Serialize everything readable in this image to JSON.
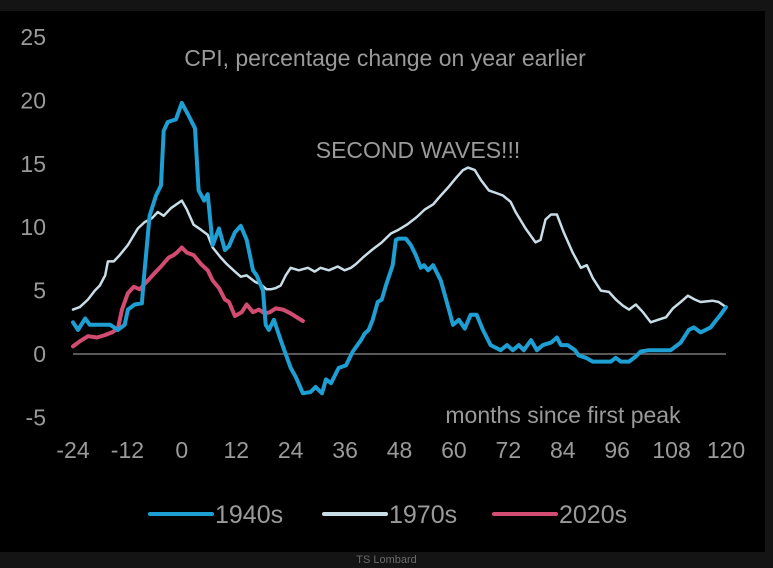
{
  "footer": {
    "source": "TS Lombard"
  },
  "colors": {
    "s1940s": "#1e9fd4",
    "s1970s": "#c8dde6",
    "s2020s": "#d24c72",
    "zero_line": "#777777",
    "text": "#9a9a9a"
  },
  "chart_data": {
    "type": "line",
    "title": "CPI, percentage change on year earlier",
    "annotation": "SECOND WAVES!!!",
    "xlabel": "months since first peak",
    "ylabel": "",
    "xlim": [
      -24,
      120
    ],
    "ylim": [
      -5,
      25
    ],
    "xticks": [
      -24,
      -12,
      0,
      12,
      24,
      36,
      48,
      60,
      72,
      84,
      96,
      108,
      120
    ],
    "yticks": [
      -5,
      0,
      5,
      10,
      15,
      20,
      25
    ],
    "grid": false,
    "zero_line": true,
    "legend_position": "bottom",
    "series": [
      {
        "name": "1940s",
        "color": "#1e9fd4",
        "points": [
          [
            -24,
            2.5
          ],
          [
            -22.9,
            1.9
          ],
          [
            -21.3,
            2.8
          ],
          [
            -20.3,
            2.3
          ],
          [
            -15.8,
            2.3
          ],
          [
            -14.1,
            1.9
          ],
          [
            -12.6,
            2.3
          ],
          [
            -11.9,
            3.5
          ],
          [
            -10.4,
            3.9
          ],
          [
            -8.8,
            4.0
          ],
          [
            -8.4,
            5.8
          ],
          [
            -7.1,
            10.9
          ],
          [
            -5.7,
            12.5
          ],
          [
            -4.6,
            13.3
          ],
          [
            -4.0,
            17.6
          ],
          [
            -3.1,
            18.3
          ],
          [
            -1.3,
            18.5
          ],
          [
            0,
            19.8
          ],
          [
            1.5,
            18.8
          ],
          [
            2.9,
            17.8
          ],
          [
            3.7,
            12.9
          ],
          [
            4.9,
            12.1
          ],
          [
            5.7,
            12.6
          ],
          [
            6.8,
            8.6
          ],
          [
            8.2,
            9.9
          ],
          [
            9.5,
            8.2
          ],
          [
            10.4,
            8.5
          ],
          [
            11.7,
            9.6
          ],
          [
            13.0,
            10.1
          ],
          [
            14.3,
            9.0
          ],
          [
            15.7,
            6.6
          ],
          [
            16.5,
            6.2
          ],
          [
            17.9,
            5.0
          ],
          [
            18.5,
            2.3
          ],
          [
            19.2,
            1.9
          ],
          [
            20.3,
            2.7
          ],
          [
            21.8,
            1.1
          ],
          [
            24.0,
            -1.1
          ],
          [
            25.1,
            -1.8
          ],
          [
            26.7,
            -3.1
          ],
          [
            28.4,
            -3.0
          ],
          [
            29.5,
            -2.6
          ],
          [
            30.9,
            -3.1
          ],
          [
            31.8,
            -2.0
          ],
          [
            32.9,
            -2.3
          ],
          [
            34.6,
            -1.1
          ],
          [
            36.2,
            -0.9
          ],
          [
            37.7,
            0.2
          ],
          [
            39.5,
            1.1
          ],
          [
            40.3,
            1.6
          ],
          [
            41.2,
            1.9
          ],
          [
            42.1,
            2.7
          ],
          [
            43.2,
            4.1
          ],
          [
            44.1,
            4.3
          ],
          [
            45.0,
            5.4
          ],
          [
            46.5,
            7.0
          ],
          [
            47.2,
            9.0
          ],
          [
            47.8,
            9.1
          ],
          [
            49.4,
            9.1
          ],
          [
            50.5,
            8.6
          ],
          [
            51.6,
            7.8
          ],
          [
            52.7,
            6.8
          ],
          [
            53.4,
            7.0
          ],
          [
            54.3,
            6.6
          ],
          [
            55.4,
            7.0
          ],
          [
            57.1,
            5.8
          ],
          [
            58.9,
            3.5
          ],
          [
            59.8,
            2.3
          ],
          [
            61.1,
            2.7
          ],
          [
            62.4,
            2.0
          ],
          [
            63.7,
            3.1
          ],
          [
            65.0,
            3.1
          ],
          [
            66.4,
            1.9
          ],
          [
            68.1,
            0.7
          ],
          [
            70.3,
            0.3
          ],
          [
            71.7,
            0.7
          ],
          [
            73.0,
            0.3
          ],
          [
            74.3,
            0.7
          ],
          [
            75.4,
            0.3
          ],
          [
            77.0,
            1.1
          ],
          [
            78.3,
            0.3
          ],
          [
            79.6,
            0.7
          ],
          [
            81.4,
            0.9
          ],
          [
            82.7,
            1.3
          ],
          [
            83.6,
            0.7
          ],
          [
            85.1,
            0.7
          ],
          [
            86.7,
            0.3
          ],
          [
            87.5,
            -0.1
          ],
          [
            89.1,
            -0.3
          ],
          [
            90.6,
            -0.6
          ],
          [
            92.4,
            -0.6
          ],
          [
            94.6,
            -0.6
          ],
          [
            95.7,
            -0.3
          ],
          [
            96.8,
            -0.6
          ],
          [
            98.6,
            -0.6
          ],
          [
            100.1,
            -0.2
          ],
          [
            101.2,
            0.2
          ],
          [
            103.0,
            0.3
          ],
          [
            105.6,
            0.3
          ],
          [
            107.8,
            0.3
          ],
          [
            110.0,
            0.9
          ],
          [
            111.8,
            1.9
          ],
          [
            112.9,
            2.1
          ],
          [
            114.4,
            1.7
          ],
          [
            116.6,
            2.1
          ],
          [
            117.9,
            2.7
          ],
          [
            118.8,
            3.1
          ],
          [
            120,
            3.7
          ]
        ]
      },
      {
        "name": "1970s",
        "color": "#c8dde6",
        "points": [
          [
            -24,
            3.5
          ],
          [
            -22.5,
            3.7
          ],
          [
            -20.7,
            4.3
          ],
          [
            -19.2,
            5.0
          ],
          [
            -18.1,
            5.4
          ],
          [
            -16.9,
            6.2
          ],
          [
            -16.3,
            7.3
          ],
          [
            -15.0,
            7.3
          ],
          [
            -13.7,
            7.8
          ],
          [
            -11.9,
            8.6
          ],
          [
            -9.7,
            9.9
          ],
          [
            -8.2,
            10.4
          ],
          [
            -6.6,
            10.7
          ],
          [
            -5.3,
            11.2
          ],
          [
            -4.0,
            10.9
          ],
          [
            -2.4,
            11.5
          ],
          [
            0,
            12.1
          ],
          [
            1.1,
            11.4
          ],
          [
            2.6,
            10.2
          ],
          [
            4.2,
            9.8
          ],
          [
            5.7,
            9.4
          ],
          [
            6.8,
            8.4
          ],
          [
            8.6,
            7.6
          ],
          [
            9.9,
            7.1
          ],
          [
            11.7,
            6.5
          ],
          [
            13.0,
            6.1
          ],
          [
            14.3,
            6.2
          ],
          [
            16.1,
            5.7
          ],
          [
            17.4,
            5.5
          ],
          [
            18.7,
            5.1
          ],
          [
            19.6,
            5.1
          ],
          [
            20.7,
            5.2
          ],
          [
            21.8,
            5.4
          ],
          [
            22.9,
            6.2
          ],
          [
            24.0,
            6.8
          ],
          [
            25.8,
            6.6
          ],
          [
            27.8,
            6.8
          ],
          [
            29.3,
            6.5
          ],
          [
            30.6,
            6.8
          ],
          [
            32.4,
            6.6
          ],
          [
            34.4,
            6.9
          ],
          [
            35.9,
            6.6
          ],
          [
            37.3,
            6.8
          ],
          [
            38.4,
            7.1
          ],
          [
            39.9,
            7.6
          ],
          [
            41.9,
            8.2
          ],
          [
            44.1,
            8.8
          ],
          [
            46.1,
            9.5
          ],
          [
            47.8,
            9.8
          ],
          [
            49.6,
            10.2
          ],
          [
            51.8,
            10.8
          ],
          [
            53.6,
            11.4
          ],
          [
            55.4,
            11.8
          ],
          [
            57.1,
            12.5
          ],
          [
            58.9,
            13.2
          ],
          [
            60.5,
            13.9
          ],
          [
            62.0,
            14.5
          ],
          [
            63.1,
            14.7
          ],
          [
            64.6,
            14.5
          ],
          [
            66.0,
            13.7
          ],
          [
            67.7,
            12.9
          ],
          [
            69.3,
            12.7
          ],
          [
            70.8,
            12.5
          ],
          [
            72.5,
            12.0
          ],
          [
            73.6,
            11.2
          ],
          [
            75.8,
            9.9
          ],
          [
            78.0,
            8.8
          ],
          [
            79.1,
            9.0
          ],
          [
            80.2,
            10.6
          ],
          [
            81.4,
            11.0
          ],
          [
            82.7,
            11.0
          ],
          [
            84.2,
            9.6
          ],
          [
            86.2,
            8.0
          ],
          [
            88.0,
            6.8
          ],
          [
            89.3,
            7.0
          ],
          [
            90.6,
            6.0
          ],
          [
            92.4,
            5.0
          ],
          [
            94.2,
            4.9
          ],
          [
            95.7,
            4.3
          ],
          [
            97.3,
            3.8
          ],
          [
            98.6,
            3.5
          ],
          [
            100.1,
            3.9
          ],
          [
            101.7,
            3.3
          ],
          [
            103.4,
            2.5
          ],
          [
            105.0,
            2.7
          ],
          [
            106.8,
            2.9
          ],
          [
            108.3,
            3.6
          ],
          [
            110.0,
            4.1
          ],
          [
            111.6,
            4.6
          ],
          [
            113.1,
            4.3
          ],
          [
            114.4,
            4.1
          ],
          [
            117.0,
            4.2
          ],
          [
            118.4,
            4.1
          ],
          [
            120,
            3.7
          ]
        ]
      },
      {
        "name": "2020s",
        "color": "#d24c72",
        "points": [
          [
            -24,
            0.6
          ],
          [
            -22.5,
            1.0
          ],
          [
            -20.7,
            1.4
          ],
          [
            -18.7,
            1.3
          ],
          [
            -16.9,
            1.5
          ],
          [
            -15.4,
            1.7
          ],
          [
            -14.1,
            2.0
          ],
          [
            -13.2,
            3.5
          ],
          [
            -11.9,
            4.8
          ],
          [
            -10.6,
            5.3
          ],
          [
            -9.3,
            5.1
          ],
          [
            -7.5,
            5.8
          ],
          [
            -5.7,
            6.5
          ],
          [
            -4.6,
            6.9
          ],
          [
            -2.9,
            7.6
          ],
          [
            -1.8,
            7.8
          ],
          [
            -1.1,
            8.0
          ],
          [
            0,
            8.4
          ],
          [
            1.1,
            8.0
          ],
          [
            2.6,
            7.8
          ],
          [
            4.2,
            7.1
          ],
          [
            5.7,
            6.6
          ],
          [
            6.8,
            5.8
          ],
          [
            8.2,
            5.2
          ],
          [
            9.5,
            4.3
          ],
          [
            10.4,
            4.1
          ],
          [
            11.7,
            3.0
          ],
          [
            13.2,
            3.3
          ],
          [
            14.3,
            3.9
          ],
          [
            15.7,
            3.3
          ],
          [
            17.0,
            3.5
          ],
          [
            18.3,
            3.2
          ],
          [
            19.4,
            3.3
          ],
          [
            20.7,
            3.6
          ],
          [
            22.3,
            3.5
          ],
          [
            24.0,
            3.2
          ],
          [
            25.8,
            2.8
          ],
          [
            26.7,
            2.6
          ]
        ]
      }
    ]
  }
}
